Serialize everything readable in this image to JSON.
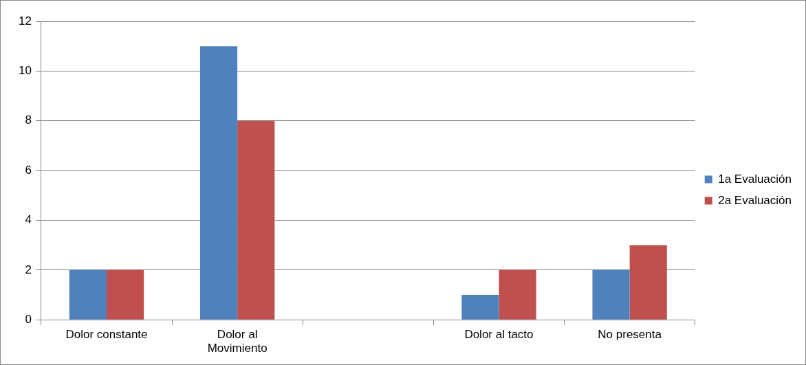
{
  "chart_data": {
    "type": "bar",
    "categories": [
      "Dolor constante",
      "Dolor al Movimiento",
      null,
      "Dolor al tacto",
      "No presenta"
    ],
    "series": [
      {
        "name": "1a Evaluación",
        "color": "#4f81bd",
        "values": [
          2,
          11,
          null,
          1,
          2
        ]
      },
      {
        "name": "2a Evaluación",
        "color": "#c0504d",
        "values": [
          2,
          8,
          null,
          2,
          3
        ]
      }
    ],
    "ylim": [
      0,
      12
    ],
    "yticks": [
      0,
      2,
      4,
      6,
      8,
      10,
      12
    ],
    "grid": "y",
    "legend": "right"
  }
}
